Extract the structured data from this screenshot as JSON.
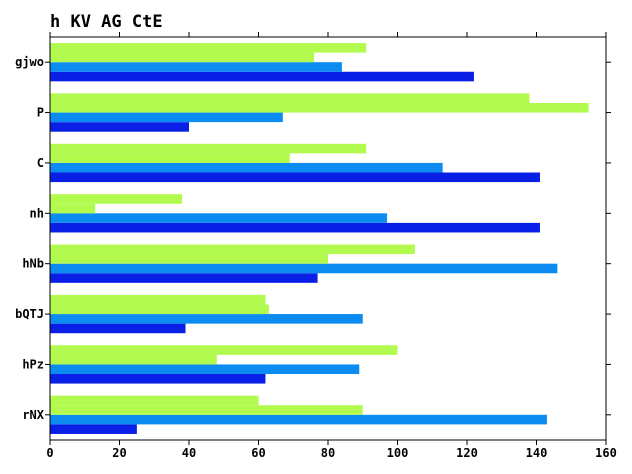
{
  "chart_data": {
    "type": "bar",
    "orientation": "horizontal",
    "title": "h KV AG CtE",
    "xlabel": "",
    "ylabel": "",
    "xlim": [
      0,
      160
    ],
    "x_ticks": [
      0,
      20,
      40,
      60,
      80,
      100,
      120,
      140,
      160
    ],
    "grid": false,
    "legend": "none",
    "categories": [
      "rNX",
      "hPz",
      "bQTJ",
      "hNb",
      "nh",
      "C",
      "P",
      "gjwo"
    ],
    "series": [
      {
        "color": "#0a1fe6",
        "values": [
          25,
          62,
          39,
          77,
          141,
          141,
          40,
          122
        ]
      },
      {
        "color": "#0c8cf0",
        "values": [
          143,
          89,
          90,
          146,
          97,
          113,
          67,
          84
        ]
      },
      {
        "color": "#b3fa4f",
        "values": [
          90,
          48,
          63,
          80,
          13,
          69,
          155,
          76
        ]
      },
      {
        "color": "#b3fa4f",
        "values": [
          60,
          100,
          62,
          105,
          38,
          91,
          138,
          91
        ]
      }
    ]
  }
}
